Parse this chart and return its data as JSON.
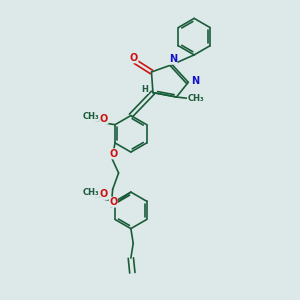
{
  "bg_color": "#dde8e8",
  "bond_color": "#1a5c3a",
  "bond_lw": 1.2,
  "O_color": "#cc1111",
  "N_color": "#1111cc",
  "label_fontsize": 7.0,
  "label_fontsize_small": 6.0,
  "fig_w": 3.0,
  "fig_h": 3.0,
  "dpi": 100,
  "xlim": [
    0,
    10
  ],
  "ylim": [
    0,
    10
  ]
}
